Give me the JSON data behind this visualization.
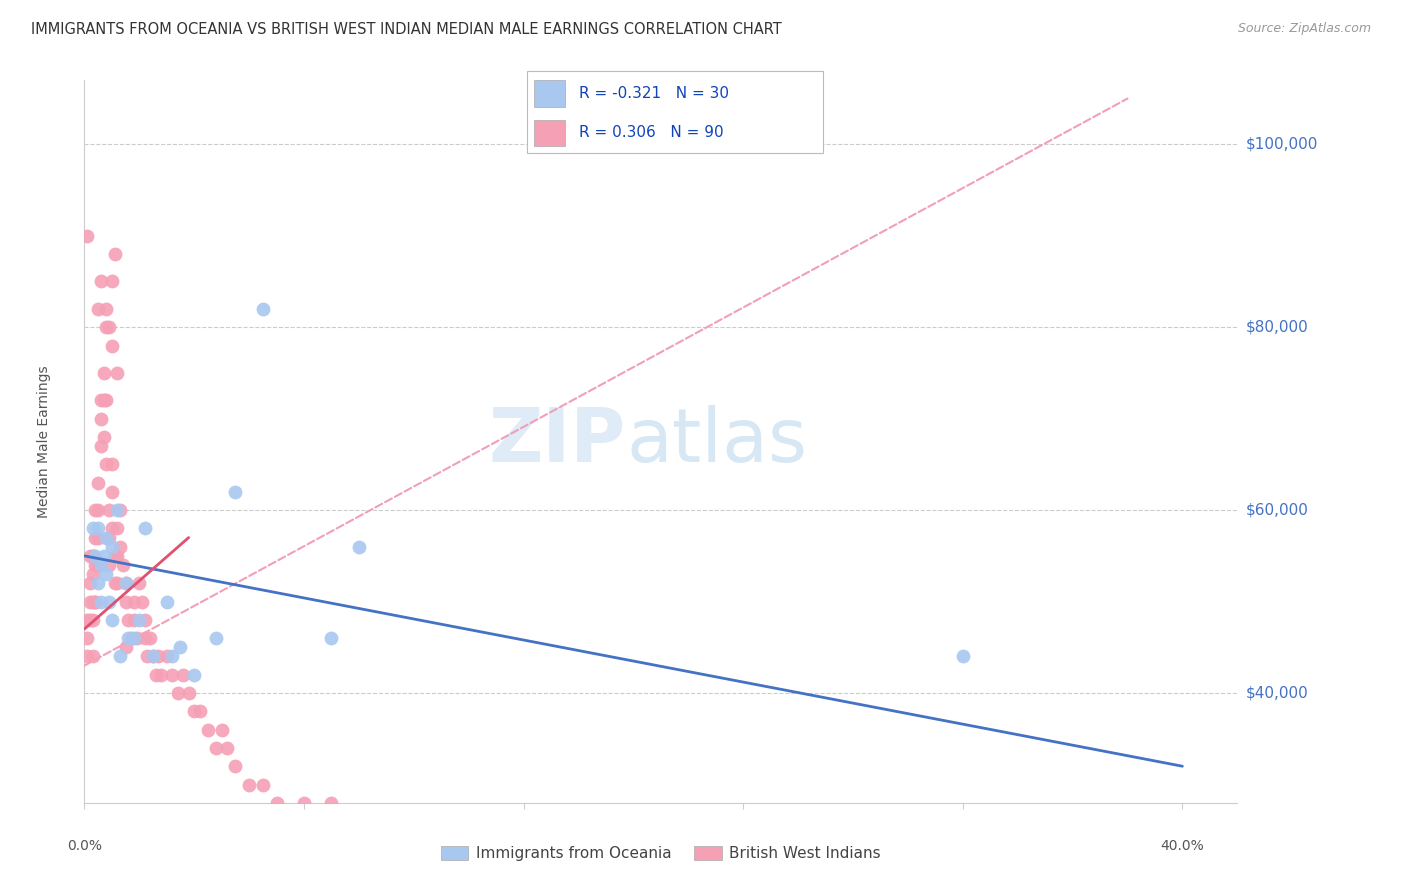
{
  "title": "IMMIGRANTS FROM OCEANIA VS BRITISH WEST INDIAN MEDIAN MALE EARNINGS CORRELATION CHART",
  "source": "Source: ZipAtlas.com",
  "ylabel": "Median Male Earnings",
  "yticks": [
    40000,
    60000,
    80000,
    100000
  ],
  "ytick_labels": [
    "$40,000",
    "$60,000",
    "$80,000",
    "$100,000"
  ],
  "xtick_positions": [
    0.0,
    0.08,
    0.16,
    0.24,
    0.32,
    0.4
  ],
  "xlim": [
    0.0,
    0.42
  ],
  "ylim": [
    28000,
    107000
  ],
  "watermark_zip": "ZIP",
  "watermark_atlas": "atlas",
  "blue_color": "#A8C8F0",
  "pink_color": "#F5A0B5",
  "blue_line_color": "#4472C4",
  "pink_line_color": "#E05070",
  "pink_dash_color": "#F0A0B8",
  "grid_color": "#CCCCCC",
  "title_color": "#333333",
  "source_color": "#999999",
  "right_label_color": "#4472C4",
  "blue_scatter_x": [
    0.003,
    0.004,
    0.005,
    0.005,
    0.006,
    0.006,
    0.007,
    0.008,
    0.008,
    0.009,
    0.01,
    0.01,
    0.012,
    0.013,
    0.015,
    0.016,
    0.018,
    0.02,
    0.022,
    0.025,
    0.03,
    0.032,
    0.035,
    0.04,
    0.048,
    0.055,
    0.065,
    0.09,
    0.1,
    0.32
  ],
  "blue_scatter_y": [
    58000,
    55000,
    52000,
    58000,
    50000,
    54000,
    55000,
    57000,
    53000,
    50000,
    56000,
    48000,
    60000,
    44000,
    52000,
    46000,
    46000,
    48000,
    58000,
    44000,
    50000,
    44000,
    45000,
    42000,
    46000,
    62000,
    82000,
    46000,
    56000,
    44000
  ],
  "pink_scatter_x": [
    0.001,
    0.001,
    0.001,
    0.001,
    0.002,
    0.002,
    0.002,
    0.002,
    0.003,
    0.003,
    0.003,
    0.003,
    0.003,
    0.004,
    0.004,
    0.004,
    0.004,
    0.005,
    0.005,
    0.005,
    0.005,
    0.006,
    0.006,
    0.006,
    0.007,
    0.007,
    0.007,
    0.008,
    0.008,
    0.008,
    0.009,
    0.009,
    0.009,
    0.01,
    0.01,
    0.01,
    0.011,
    0.011,
    0.012,
    0.012,
    0.012,
    0.013,
    0.013,
    0.014,
    0.015,
    0.015,
    0.016,
    0.017,
    0.018,
    0.018,
    0.019,
    0.02,
    0.021,
    0.022,
    0.022,
    0.023,
    0.024,
    0.025,
    0.026,
    0.027,
    0.028,
    0.03,
    0.032,
    0.034,
    0.036,
    0.038,
    0.04,
    0.042,
    0.045,
    0.048,
    0.05,
    0.052,
    0.055,
    0.06,
    0.065,
    0.07,
    0.08,
    0.09,
    0.1,
    0.005,
    0.006,
    0.008,
    0.009,
    0.01,
    0.01,
    0.011,
    0.012,
    0.015,
    0.003,
    0.004
  ],
  "pink_scatter_y": [
    48000,
    46000,
    44000,
    90000,
    55000,
    52000,
    50000,
    48000,
    55000,
    53000,
    50000,
    48000,
    44000,
    60000,
    57000,
    54000,
    50000,
    63000,
    60000,
    57000,
    54000,
    72000,
    70000,
    67000,
    75000,
    72000,
    68000,
    65000,
    72000,
    80000,
    60000,
    57000,
    54000,
    65000,
    62000,
    58000,
    55000,
    52000,
    58000,
    55000,
    52000,
    60000,
    56000,
    54000,
    52000,
    50000,
    48000,
    46000,
    50000,
    48000,
    46000,
    52000,
    50000,
    48000,
    46000,
    44000,
    46000,
    44000,
    42000,
    44000,
    42000,
    44000,
    42000,
    40000,
    42000,
    40000,
    38000,
    38000,
    36000,
    34000,
    36000,
    34000,
    32000,
    30000,
    30000,
    28000,
    28000,
    28000,
    26000,
    82000,
    85000,
    82000,
    80000,
    78000,
    85000,
    88000,
    75000,
    45000,
    55000,
    50000
  ]
}
